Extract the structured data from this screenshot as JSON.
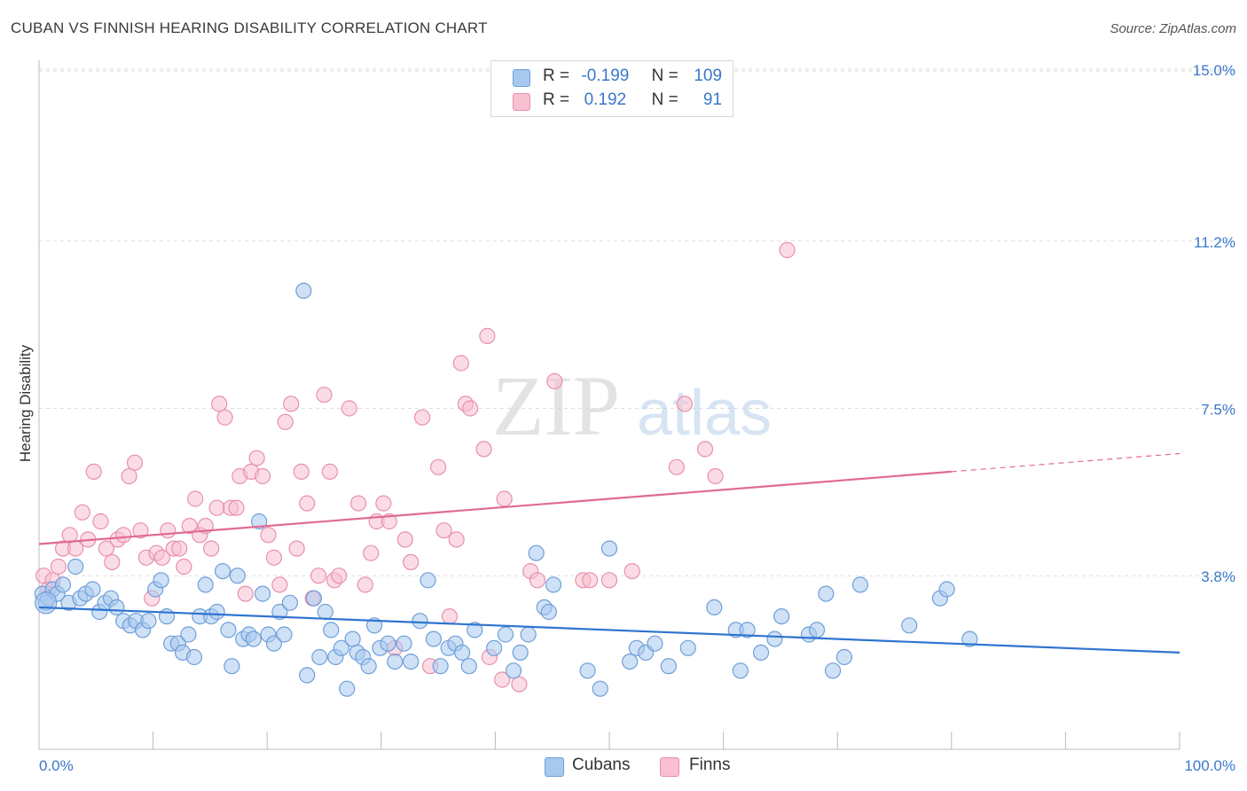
{
  "title": "CUBAN VS FINNISH HEARING DISABILITY CORRELATION CHART",
  "source": "Source: ZipAtlas.com",
  "legend": {
    "cubans": {
      "r_label": "R =",
      "r_value": "-0.199",
      "n_label": "N =",
      "n_value": "109"
    },
    "finns": {
      "r_label": "R =",
      "r_value": "0.192",
      "n_label": "N =",
      "n_value": "91"
    }
  },
  "bottom_legend": {
    "cubans": "Cubans",
    "finns": "Finns"
  },
  "colors": {
    "cubans_fill": "#a8c8ef",
    "cubans_stroke": "#6f9fd8",
    "cubans_line": "#2f74d0",
    "finns_fill": "#f8c0d0",
    "finns_stroke": "#e890ac",
    "finns_line": "#e06a94",
    "axis_label": "#3a78c9",
    "grid": "#dddddd"
  },
  "watermark": {
    "zip": "ZIP",
    "atlas": "atlas"
  },
  "chart_data": {
    "type": "scatter",
    "title": "CUBAN VS FINNISH HEARING DISABILITY CORRELATION CHART",
    "xlabel": "",
    "ylabel": "Hearing Disability",
    "xlim": [
      0,
      100
    ],
    "ylim": [
      0,
      15.0
    ],
    "x_tick_labels": [
      "0.0%",
      "100.0%"
    ],
    "y_ticks": [
      3.8,
      7.5,
      11.2,
      15.0
    ],
    "y_tick_labels": [
      "3.8%",
      "7.5%",
      "11.2%",
      "15.0%"
    ],
    "grid": true,
    "series": [
      {
        "name": "Cubans",
        "r": -0.199,
        "n": 109,
        "trend": {
          "x": [
            0,
            100
          ],
          "y": [
            3.1,
            2.1
          ]
        },
        "points": [
          [
            0.3,
            3.4
          ],
          [
            0.6,
            3.2
          ],
          [
            0.8,
            3.3
          ],
          [
            1.2,
            3.5
          ],
          [
            1.6,
            3.4
          ],
          [
            2.1,
            3.6
          ],
          [
            2.6,
            3.2
          ],
          [
            3.2,
            4.0
          ],
          [
            3.6,
            3.3
          ],
          [
            4.1,
            3.4
          ],
          [
            4.7,
            3.5
          ],
          [
            5.3,
            3.0
          ],
          [
            5.8,
            3.2
          ],
          [
            6.3,
            3.3
          ],
          [
            6.8,
            3.1
          ],
          [
            7.4,
            2.8
          ],
          [
            8.0,
            2.7
          ],
          [
            8.5,
            2.8
          ],
          [
            9.1,
            2.6
          ],
          [
            9.6,
            2.8
          ],
          [
            10.2,
            3.5
          ],
          [
            10.7,
            3.7
          ],
          [
            11.2,
            2.9
          ],
          [
            11.6,
            2.3
          ],
          [
            12.2,
            2.3
          ],
          [
            12.6,
            2.1
          ],
          [
            13.1,
            2.5
          ],
          [
            13.6,
            2.0
          ],
          [
            14.1,
            2.9
          ],
          [
            14.6,
            3.6
          ],
          [
            15.1,
            2.9
          ],
          [
            15.6,
            3.0
          ],
          [
            16.1,
            3.9
          ],
          [
            16.6,
            2.6
          ],
          [
            16.9,
            1.8
          ],
          [
            17.4,
            3.8
          ],
          [
            17.9,
            2.4
          ],
          [
            18.4,
            2.5
          ],
          [
            18.8,
            2.4
          ],
          [
            19.3,
            5.0
          ],
          [
            19.6,
            3.4
          ],
          [
            20.1,
            2.5
          ],
          [
            20.6,
            2.3
          ],
          [
            21.1,
            3.0
          ],
          [
            21.5,
            2.5
          ],
          [
            22.0,
            3.2
          ],
          [
            23.2,
            10.1
          ],
          [
            23.5,
            1.6
          ],
          [
            24.1,
            3.3
          ],
          [
            24.6,
            2.0
          ],
          [
            25.1,
            3.0
          ],
          [
            25.6,
            2.6
          ],
          [
            26.0,
            2.0
          ],
          [
            26.5,
            2.2
          ],
          [
            27.0,
            1.3
          ],
          [
            27.5,
            2.4
          ],
          [
            27.9,
            2.1
          ],
          [
            28.4,
            2.0
          ],
          [
            28.9,
            1.8
          ],
          [
            29.4,
            2.7
          ],
          [
            29.9,
            2.2
          ],
          [
            30.6,
            2.3
          ],
          [
            31.2,
            1.9
          ],
          [
            32.0,
            2.3
          ],
          [
            32.6,
            1.9
          ],
          [
            33.4,
            2.8
          ],
          [
            34.1,
            3.7
          ],
          [
            34.6,
            2.4
          ],
          [
            35.2,
            1.8
          ],
          [
            35.9,
            2.2
          ],
          [
            36.5,
            2.3
          ],
          [
            37.1,
            2.1
          ],
          [
            37.7,
            1.8
          ],
          [
            38.2,
            2.6
          ],
          [
            39.9,
            2.2
          ],
          [
            40.9,
            2.5
          ],
          [
            41.6,
            1.7
          ],
          [
            42.2,
            2.1
          ],
          [
            42.9,
            2.5
          ],
          [
            43.6,
            4.3
          ],
          [
            44.3,
            3.1
          ],
          [
            44.7,
            3.0
          ],
          [
            45.1,
            3.6
          ],
          [
            48.1,
            1.7
          ],
          [
            49.2,
            1.3
          ],
          [
            50.0,
            4.4
          ],
          [
            51.8,
            1.9
          ],
          [
            52.4,
            2.2
          ],
          [
            53.2,
            2.1
          ],
          [
            54.0,
            2.3
          ],
          [
            55.2,
            1.8
          ],
          [
            56.9,
            2.2
          ],
          [
            59.2,
            3.1
          ],
          [
            61.1,
            2.6
          ],
          [
            61.5,
            1.7
          ],
          [
            62.1,
            2.6
          ],
          [
            63.3,
            2.1
          ],
          [
            64.5,
            2.4
          ],
          [
            65.1,
            2.9
          ],
          [
            67.5,
            2.5
          ],
          [
            68.2,
            2.6
          ],
          [
            69.0,
            3.4
          ],
          [
            69.6,
            1.7
          ],
          [
            70.6,
            2.0
          ],
          [
            72.0,
            3.6
          ],
          [
            76.3,
            2.7
          ],
          [
            79.0,
            3.3
          ],
          [
            79.6,
            3.5
          ],
          [
            81.6,
            2.4
          ]
        ]
      },
      {
        "name": "Finns",
        "r": 0.192,
        "n": 91,
        "trend": {
          "x": [
            0,
            80
          ],
          "y": [
            4.5,
            6.1
          ]
        },
        "trend_dashed": {
          "x": [
            80,
            100
          ],
          "y": [
            6.1,
            6.5
          ]
        },
        "points": [
          [
            0.4,
            3.8
          ],
          [
            0.8,
            3.5
          ],
          [
            1.2,
            3.7
          ],
          [
            1.7,
            4.0
          ],
          [
            2.1,
            4.4
          ],
          [
            2.7,
            4.7
          ],
          [
            3.2,
            4.4
          ],
          [
            3.8,
            5.2
          ],
          [
            4.3,
            4.6
          ],
          [
            4.8,
            6.1
          ],
          [
            5.4,
            5.0
          ],
          [
            5.9,
            4.4
          ],
          [
            6.4,
            4.1
          ],
          [
            6.9,
            4.6
          ],
          [
            7.4,
            4.7
          ],
          [
            7.9,
            6.0
          ],
          [
            8.4,
            6.3
          ],
          [
            8.9,
            4.8
          ],
          [
            9.4,
            4.2
          ],
          [
            9.9,
            3.3
          ],
          [
            10.3,
            4.3
          ],
          [
            10.8,
            4.2
          ],
          [
            11.3,
            4.8
          ],
          [
            11.8,
            4.4
          ],
          [
            12.3,
            4.4
          ],
          [
            12.7,
            4.0
          ],
          [
            13.2,
            4.9
          ],
          [
            13.7,
            5.5
          ],
          [
            14.1,
            4.7
          ],
          [
            14.6,
            4.9
          ],
          [
            15.1,
            4.4
          ],
          [
            15.6,
            5.3
          ],
          [
            15.8,
            7.6
          ],
          [
            16.3,
            7.3
          ],
          [
            16.8,
            5.3
          ],
          [
            17.3,
            5.3
          ],
          [
            17.6,
            6.0
          ],
          [
            18.1,
            3.4
          ],
          [
            18.6,
            6.1
          ],
          [
            19.1,
            6.4
          ],
          [
            19.6,
            6.0
          ],
          [
            20.1,
            4.7
          ],
          [
            20.6,
            4.2
          ],
          [
            21.1,
            3.6
          ],
          [
            21.6,
            7.2
          ],
          [
            22.1,
            7.6
          ],
          [
            22.6,
            4.4
          ],
          [
            23.0,
            6.1
          ],
          [
            23.5,
            5.4
          ],
          [
            24.0,
            3.3
          ],
          [
            24.5,
            3.8
          ],
          [
            25.0,
            7.8
          ],
          [
            25.5,
            6.1
          ],
          [
            25.9,
            3.7
          ],
          [
            26.3,
            3.8
          ],
          [
            27.2,
            7.5
          ],
          [
            28.0,
            5.4
          ],
          [
            28.6,
            3.6
          ],
          [
            29.1,
            4.3
          ],
          [
            29.6,
            5.0
          ],
          [
            30.2,
            5.4
          ],
          [
            30.7,
            5.0
          ],
          [
            31.2,
            2.2
          ],
          [
            32.1,
            4.6
          ],
          [
            32.6,
            4.1
          ],
          [
            33.6,
            7.3
          ],
          [
            34.3,
            1.8
          ],
          [
            35.0,
            6.2
          ],
          [
            35.5,
            4.8
          ],
          [
            36.0,
            2.9
          ],
          [
            36.6,
            4.6
          ],
          [
            37.0,
            8.5
          ],
          [
            37.4,
            7.6
          ],
          [
            37.8,
            7.5
          ],
          [
            39.0,
            6.6
          ],
          [
            39.3,
            9.1
          ],
          [
            39.5,
            2.0
          ],
          [
            40.6,
            1.5
          ],
          [
            40.8,
            5.5
          ],
          [
            42.1,
            1.4
          ],
          [
            43.1,
            3.9
          ],
          [
            43.7,
            3.7
          ],
          [
            45.2,
            8.1
          ],
          [
            47.7,
            3.7
          ],
          [
            48.3,
            3.7
          ],
          [
            50.0,
            3.7
          ],
          [
            52.0,
            3.9
          ],
          [
            55.9,
            6.2
          ],
          [
            56.6,
            7.6
          ],
          [
            58.4,
            6.6
          ],
          [
            59.3,
            6.0
          ],
          [
            65.6,
            11.0
          ]
        ]
      }
    ]
  }
}
